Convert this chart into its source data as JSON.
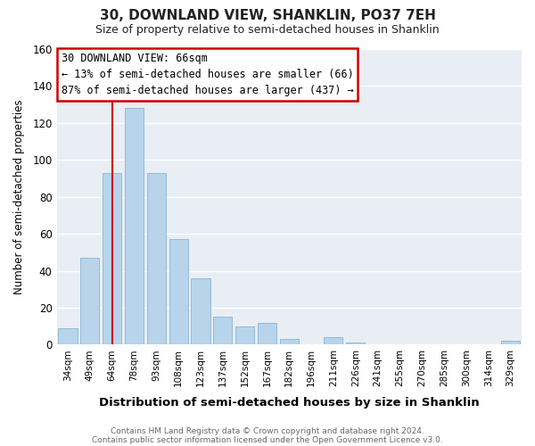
{
  "title": "30, DOWNLAND VIEW, SHANKLIN, PO37 7EH",
  "subtitle": "Size of property relative to semi-detached houses in Shanklin",
  "xlabel": "Distribution of semi-detached houses by size in Shanklin",
  "ylabel": "Number of semi-detached properties",
  "bar_color": "#b8d4ea",
  "bar_edge_color": "#8ab4d4",
  "categories": [
    "34sqm",
    "49sqm",
    "64sqm",
    "78sqm",
    "93sqm",
    "108sqm",
    "123sqm",
    "137sqm",
    "152sqm",
    "167sqm",
    "182sqm",
    "196sqm",
    "211sqm",
    "226sqm",
    "241sqm",
    "255sqm",
    "270sqm",
    "285sqm",
    "300sqm",
    "314sqm",
    "329sqm"
  ],
  "values": [
    9,
    47,
    93,
    128,
    93,
    57,
    36,
    15,
    10,
    12,
    3,
    0,
    4,
    1,
    0,
    0,
    0,
    0,
    0,
    0,
    2
  ],
  "ylim": [
    0,
    160
  ],
  "yticks": [
    0,
    20,
    40,
    60,
    80,
    100,
    120,
    140,
    160
  ],
  "vline_index": 2,
  "vline_color": "#cc0000",
  "annotation_title": "30 DOWNLAND VIEW: 66sqm",
  "annotation_line1": "← 13% of semi-detached houses are smaller (66)",
  "annotation_line2": "87% of semi-detached houses are larger (437) →",
  "annotation_box_color": "#ffffff",
  "annotation_box_edge": "#cc0000",
  "footer1": "Contains HM Land Registry data © Crown copyright and database right 2024.",
  "footer2": "Contains public sector information licensed under the Open Government Licence v3.0.",
  "background_color": "#ffffff",
  "plot_bg_color": "#e8eef4",
  "grid_color": "#ffffff",
  "fig_width": 6.0,
  "fig_height": 5.0
}
